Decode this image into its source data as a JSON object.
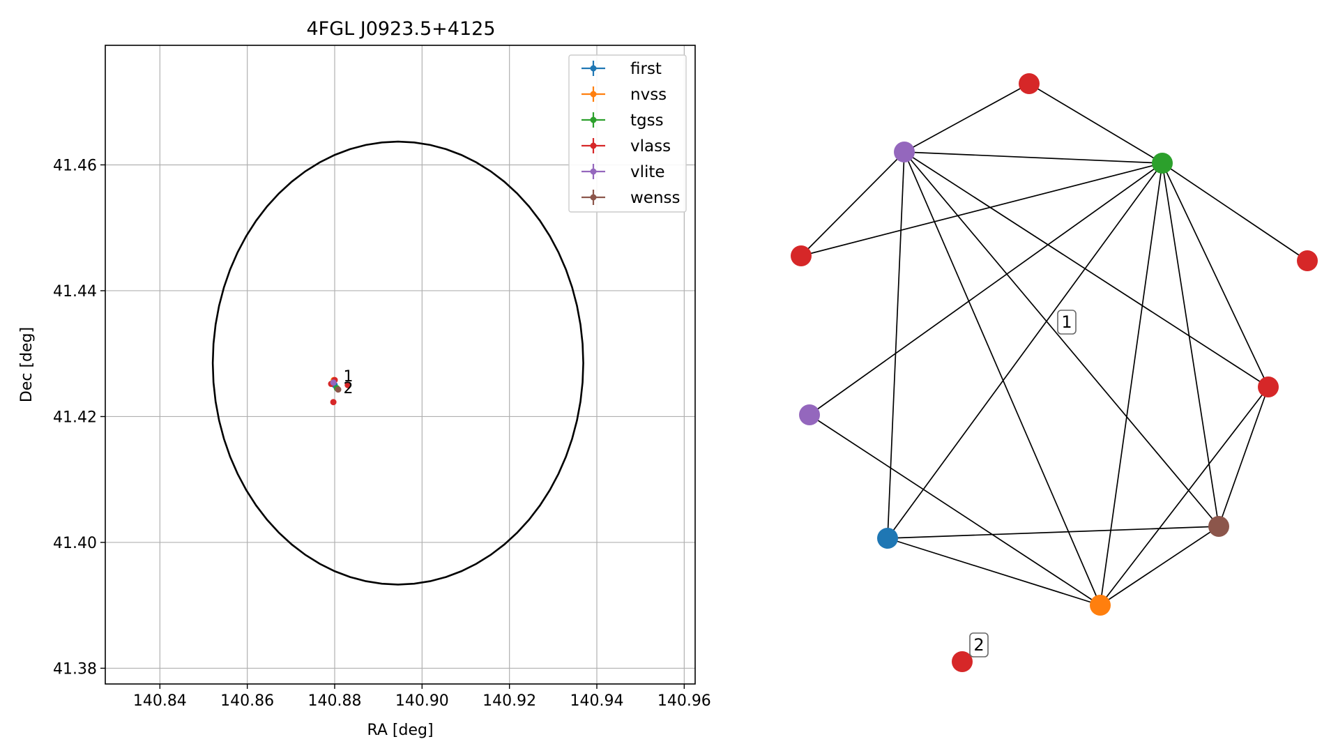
{
  "chart_data": [
    {
      "type": "scatter",
      "title": "4FGL J0923.5+4125",
      "xlabel": "RA [deg]",
      "ylabel": "Dec [deg]",
      "xlim": [
        140.8275,
        140.9625
      ],
      "ylim": [
        41.3775,
        41.479
      ],
      "xticks": [
        "140.84",
        "140.86",
        "140.88",
        "140.90",
        "140.92",
        "140.94",
        "140.96"
      ],
      "xtick_values": [
        140.84,
        140.86,
        140.88,
        140.9,
        140.92,
        140.94,
        140.96
      ],
      "yticks": [
        "41.38",
        "41.40",
        "41.42",
        "41.44",
        "41.46"
      ],
      "ytick_values": [
        41.38,
        41.4,
        41.42,
        41.44,
        41.46
      ],
      "grid": true,
      "legend_position": "upper right",
      "ellipse": {
        "center": [
          140.8945,
          41.4285
        ],
        "semi_ra": 0.0424,
        "semi_dec": 0.0352,
        "color": "#000000"
      },
      "series": [
        {
          "name": "first",
          "color": "#1f77b4",
          "points": [
            [
              140.88,
              41.425
            ]
          ]
        },
        {
          "name": "nvss",
          "color": "#ff7f0e",
          "points": [
            [
              140.8798,
              41.4258
            ]
          ]
        },
        {
          "name": "tgss",
          "color": "#2ca02c",
          "points": [
            [
              140.8805,
              41.4245
            ]
          ]
        },
        {
          "name": "vlass",
          "color": "#d62728",
          "points": [
            [
              140.88,
              41.4258
            ],
            [
              140.883,
              41.425
            ],
            [
              140.8797,
              41.4223
            ],
            [
              140.8792,
              41.4252
            ]
          ]
        },
        {
          "name": "vlite",
          "color": "#9467bd",
          "points": [
            [
              140.8797,
              41.4254
            ]
          ]
        },
        {
          "name": "wenss",
          "color": "#8c564b",
          "points": [
            [
              140.8808,
              41.4243
            ]
          ]
        }
      ],
      "annotations": [
        {
          "text": "1",
          "x": 140.882,
          "y": 41.4256
        },
        {
          "text": "2",
          "x": 140.882,
          "y": 41.4237
        }
      ]
    },
    {
      "type": "network",
      "nodes": [
        {
          "id": "n0",
          "catalog": "vlass",
          "color": "#d62728"
        },
        {
          "id": "n1",
          "catalog": "vlite",
          "color": "#9467bd"
        },
        {
          "id": "n2",
          "catalog": "tgss",
          "color": "#2ca02c"
        },
        {
          "id": "n3",
          "catalog": "vlass",
          "color": "#d62728"
        },
        {
          "id": "n4",
          "catalog": "vlass",
          "color": "#d62728"
        },
        {
          "id": "n5",
          "catalog": "vlass",
          "color": "#d62728"
        },
        {
          "id": "n6",
          "catalog": "vlite",
          "color": "#9467bd"
        },
        {
          "id": "n7",
          "catalog": "first",
          "color": "#1f77b4"
        },
        {
          "id": "n8",
          "catalog": "wenss",
          "color": "#8c564b"
        },
        {
          "id": "n9",
          "catalog": "nvss",
          "color": "#ff7f0e"
        },
        {
          "id": "n10",
          "catalog": "vlass",
          "color": "#d62728"
        }
      ],
      "edges": [
        [
          "n0",
          "n1"
        ],
        [
          "n0",
          "n2"
        ],
        [
          "n1",
          "n2"
        ],
        [
          "n1",
          "n3"
        ],
        [
          "n1",
          "n7"
        ],
        [
          "n1",
          "n9"
        ],
        [
          "n1",
          "n5"
        ],
        [
          "n1",
          "n8"
        ],
        [
          "n2",
          "n3"
        ],
        [
          "n2",
          "n4"
        ],
        [
          "n2",
          "n6"
        ],
        [
          "n2",
          "n7"
        ],
        [
          "n2",
          "n9"
        ],
        [
          "n2",
          "n8"
        ],
        [
          "n2",
          "n5"
        ],
        [
          "n6",
          "n9"
        ],
        [
          "n7",
          "n8"
        ],
        [
          "n7",
          "n9"
        ],
        [
          "n8",
          "n9"
        ],
        [
          "n5",
          "n9"
        ],
        [
          "n5",
          "n8"
        ]
      ],
      "labels": [
        "1",
        "2"
      ]
    }
  ]
}
